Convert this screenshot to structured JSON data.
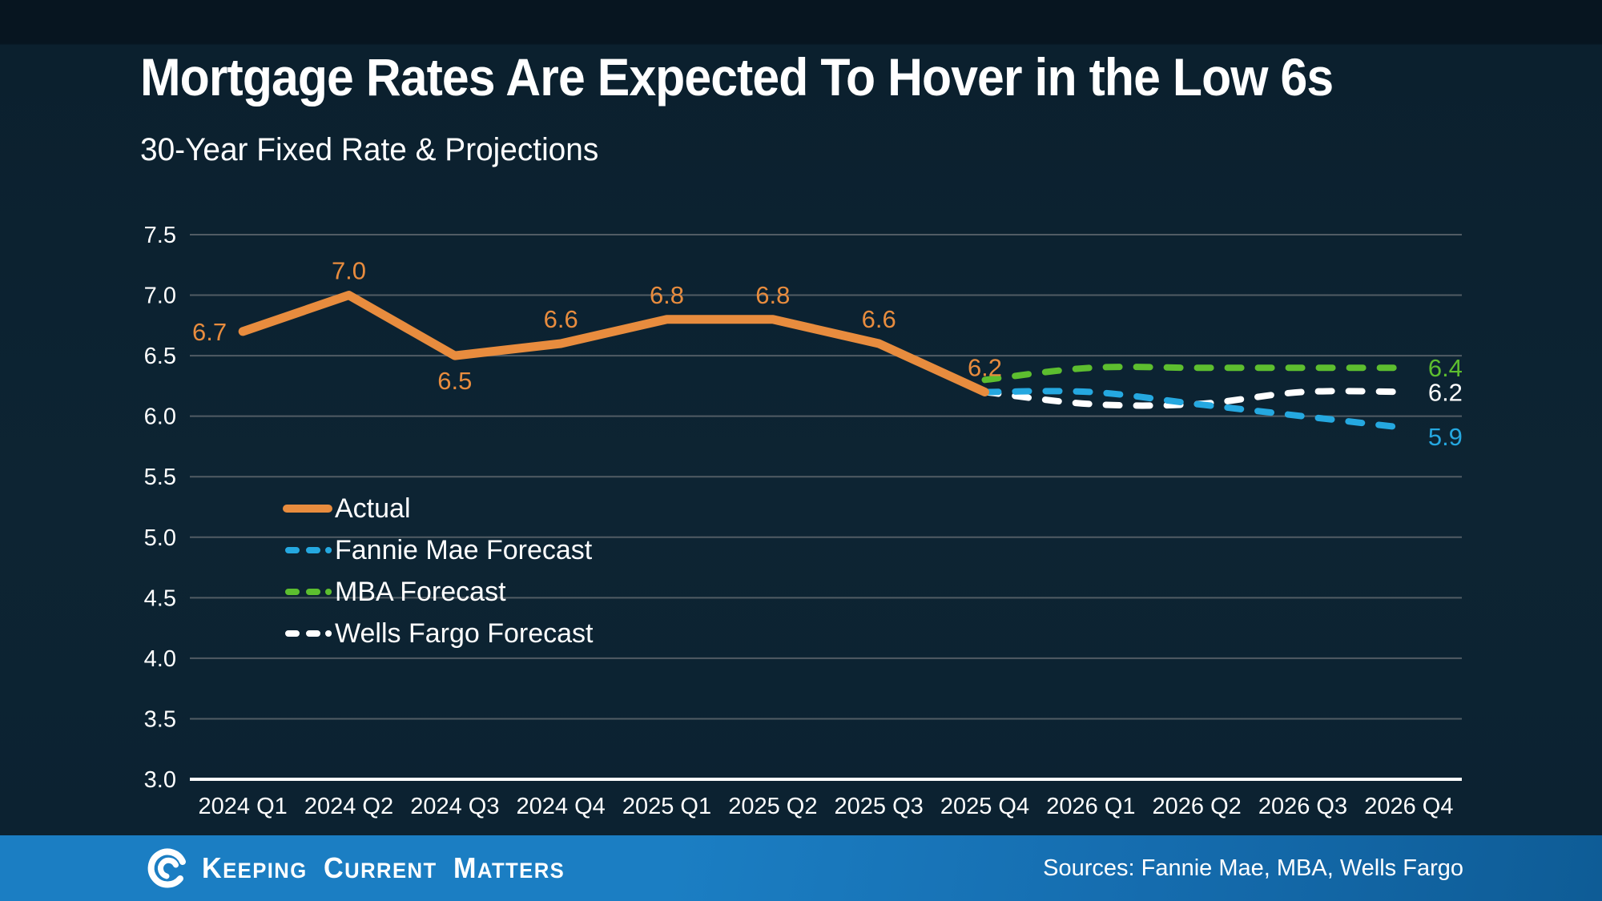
{
  "chart_data": {
    "type": "line",
    "title": "Mortgage Rates Are Expected To Hover in the Low 6s",
    "subtitle": "30-Year Fixed Rate & Projections",
    "xlabel": "",
    "ylabel": "",
    "categories": [
      "2024 Q1",
      "2024 Q2",
      "2024 Q3",
      "2024 Q4",
      "2025 Q1",
      "2025 Q2",
      "2025 Q3",
      "2025 Q4",
      "2026 Q1",
      "2026 Q2",
      "2026 Q3",
      "2026 Q4"
    ],
    "ylim": [
      3.0,
      7.5
    ],
    "ytick_step": 0.5,
    "yticks": [
      "7.5",
      "7.0",
      "6.5",
      "6.0",
      "5.5",
      "5.0",
      "4.5",
      "4.0",
      "3.5",
      "3.0"
    ],
    "grid": "horizontal",
    "legend_position": "inside-left-middle",
    "series": [
      {
        "name": "Actual",
        "line_style": "solid",
        "color": "#E88C3E",
        "values": [
          6.7,
          7.0,
          6.5,
          6.6,
          6.8,
          6.8,
          6.6,
          6.2,
          null,
          null,
          null,
          null
        ],
        "data_labels": [
          "6.7",
          "7.0",
          "6.5",
          "6.6",
          "6.8",
          "6.8",
          "6.6",
          "6.2"
        ],
        "label_positions": [
          "left",
          "above",
          "below",
          "above",
          "above",
          "above",
          "above",
          "above"
        ]
      },
      {
        "name": "Fannie Mae Forecast",
        "line_style": "dashed",
        "color": "#25A8E0",
        "values": [
          null,
          null,
          null,
          null,
          null,
          null,
          null,
          6.2,
          6.2,
          6.1,
          6.0,
          5.9
        ],
        "end_label": "5.9",
        "end_label_position": "below-right"
      },
      {
        "name": "MBA Forecast",
        "line_style": "dashed",
        "color": "#5DBE2F",
        "values": [
          null,
          null,
          null,
          null,
          null,
          null,
          null,
          6.3,
          6.4,
          6.4,
          6.4,
          6.4
        ],
        "end_label": "6.4",
        "end_label_position": "right"
      },
      {
        "name": "Wells Fargo Forecast",
        "line_style": "dashed",
        "color": "#FFFFFF",
        "values": [
          null,
          null,
          null,
          null,
          null,
          null,
          null,
          6.2,
          6.1,
          6.1,
          6.2,
          6.2
        ],
        "end_label": "6.2",
        "end_label_position": "right"
      }
    ]
  },
  "colors": {
    "background": "#0C2231",
    "grid": "#515C64",
    "axis": "#FFFFFF",
    "text": "#FFFFFF",
    "footer_blue": "#1B7EC3"
  },
  "footer": {
    "brand": "Keeping Current Matters",
    "sources": "Sources: Fannie Mae, MBA, Wells Fargo"
  }
}
